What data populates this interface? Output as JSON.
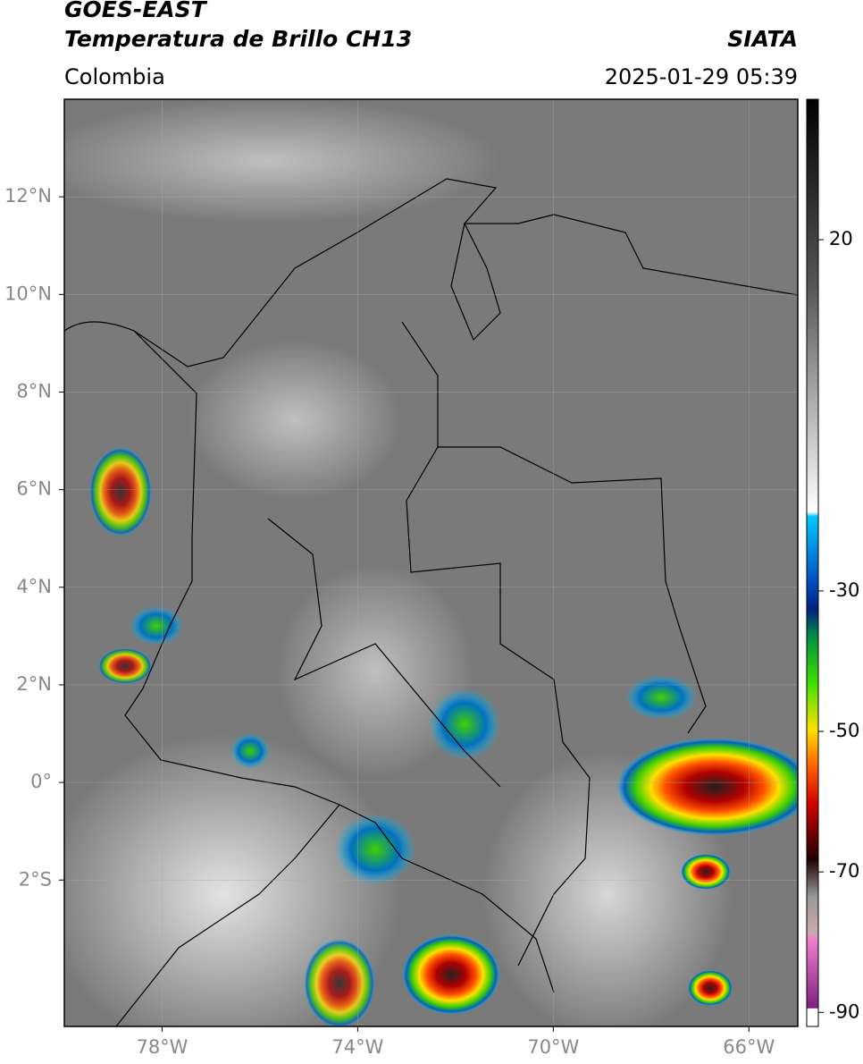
{
  "header": {
    "title": "GOES-EAST",
    "subtitle": "Temperatura de Brillo CH13",
    "source": "SIATA",
    "region": "Colombia",
    "datetime": "2025-01-29 05:39"
  },
  "map": {
    "xlim": [
      -80,
      -65
    ],
    "ylim": [
      -5,
      14
    ],
    "xticks": [
      {
        "value": -78,
        "label": "78°W"
      },
      {
        "value": -74,
        "label": "74°W"
      },
      {
        "value": -70,
        "label": "70°W"
      },
      {
        "value": -66,
        "label": "66°W"
      }
    ],
    "yticks": [
      {
        "value": 12,
        "label": "12°N"
      },
      {
        "value": 10,
        "label": "10°N"
      },
      {
        "value": 8,
        "label": "8°N"
      },
      {
        "value": 6,
        "label": "6°N"
      },
      {
        "value": 4,
        "label": "4°N"
      },
      {
        "value": 2,
        "label": "2°N"
      },
      {
        "value": 0,
        "label": "0°"
      },
      {
        "value": -2,
        "label": "2°S"
      }
    ]
  },
  "colorbar": {
    "lim": [
      -92,
      40
    ],
    "ticks": [
      20,
      -30,
      -50,
      -70,
      -90
    ]
  }
}
